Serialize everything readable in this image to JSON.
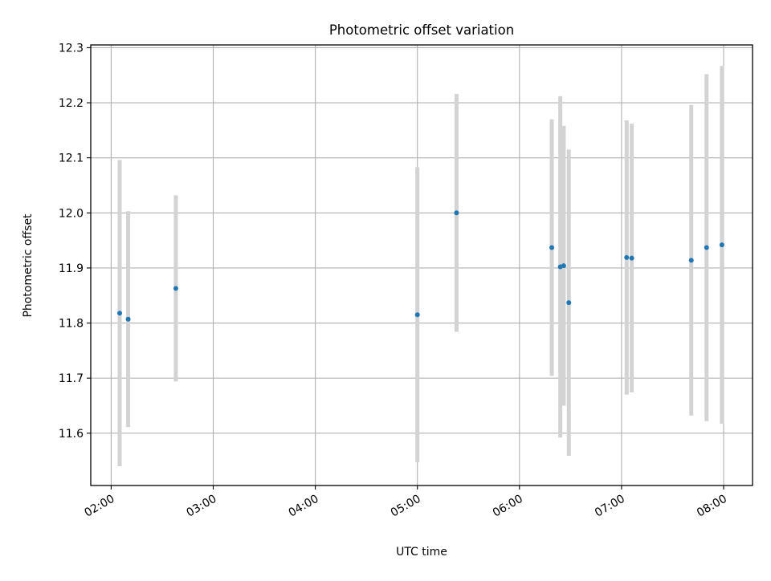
{
  "chart_data": {
    "type": "scatter",
    "title": "Photometric offset variation",
    "xlabel": "UTC time",
    "ylabel": "Photometric offset",
    "xlim": [
      "01:48",
      "08:17"
    ],
    "ylim": [
      11.505,
      12.305
    ],
    "x_ticks": [
      "02:00",
      "03:00",
      "04:00",
      "05:00",
      "06:00",
      "07:00",
      "08:00"
    ],
    "y_ticks": [
      "11.6",
      "11.7",
      "11.8",
      "11.9",
      "12.0",
      "12.1",
      "12.2",
      "12.3"
    ],
    "grid": true,
    "marker_color": "#1f77b4",
    "errorbar_color": "#d3d3d3",
    "points": [
      {
        "x": "02:05",
        "y": 11.818,
        "err": 0.278
      },
      {
        "x": "02:10",
        "y": 11.807,
        "err": 0.196
      },
      {
        "x": "02:38",
        "y": 11.863,
        "err": 0.169
      },
      {
        "x": "05:00",
        "y": 11.815,
        "err": 0.268
      },
      {
        "x": "05:23",
        "y": 12.0,
        "err": 0.216
      },
      {
        "x": "06:19",
        "y": 11.937,
        "err": 0.233
      },
      {
        "x": "06:24",
        "y": 11.902,
        "err": 0.31
      },
      {
        "x": "06:26",
        "y": 11.904,
        "err": 0.254
      },
      {
        "x": "06:29",
        "y": 11.837,
        "err": 0.278
      },
      {
        "x": "07:03",
        "y": 11.919,
        "err": 0.249
      },
      {
        "x": "07:06",
        "y": 11.918,
        "err": 0.244
      },
      {
        "x": "07:41",
        "y": 11.914,
        "err": 0.282
      },
      {
        "x": "07:50",
        "y": 11.937,
        "err": 0.315
      },
      {
        "x": "07:59",
        "y": 11.942,
        "err": 0.325
      }
    ]
  }
}
